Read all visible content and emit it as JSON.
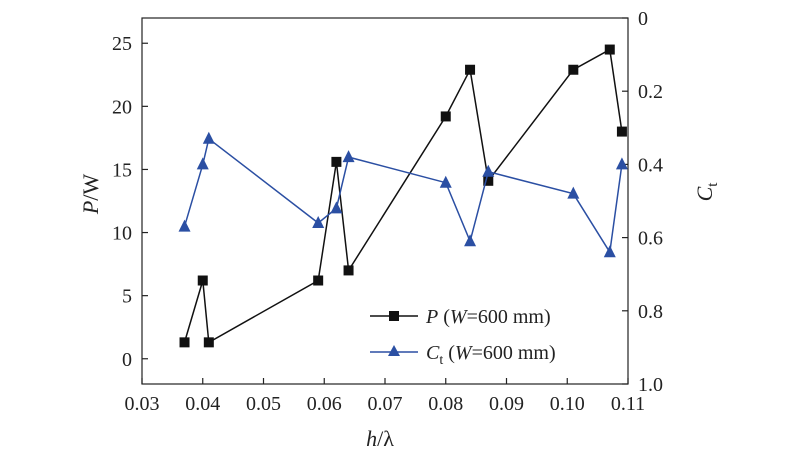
{
  "chart_data": {
    "type": "line",
    "xlabel_main": "h",
    "xlabel_unit": "/λ",
    "ylabel_left_main": "P",
    "ylabel_left_unit": "/W",
    "ylabel_right_main": "C",
    "ylabel_right_sub": "t",
    "xlim": [
      0.03,
      0.11
    ],
    "xticks": [
      "0.03",
      "0.04",
      "0.05",
      "0.06",
      "0.07",
      "0.08",
      "0.09",
      "0.10",
      "0.11"
    ],
    "ylim_left": [
      -2,
      27
    ],
    "yticks_left": [
      "0",
      "5",
      "10",
      "15",
      "20",
      "25"
    ],
    "ylim_right": [
      0,
      1.0
    ],
    "yticks_right": [
      "0",
      "0.2",
      "0.4",
      "0.6",
      "0.8",
      "1.0"
    ],
    "right_axis_inverted": true,
    "grid": false,
    "legend_position": "bottom-right",
    "series": [
      {
        "name_main": "P",
        "name_rest": " (W=600 mm)",
        "name_W": "W",
        "name_value": "=600 mm)",
        "axis": "left",
        "marker": "square",
        "color": "#111111",
        "x": [
          0.037,
          0.04,
          0.041,
          0.059,
          0.062,
          0.064,
          0.08,
          0.084,
          0.087,
          0.101,
          0.107,
          0.109
        ],
        "values": [
          1.3,
          6.2,
          1.3,
          6.2,
          15.6,
          7.0,
          19.2,
          22.9,
          14.1,
          22.9,
          24.5,
          18.0
        ]
      },
      {
        "name_main": "C",
        "name_sub": "t",
        "name_W": "W",
        "name_value": "=600 mm)",
        "axis": "right",
        "marker": "triangle",
        "color": "#2b4fa3",
        "x": [
          0.037,
          0.04,
          0.041,
          0.059,
          0.062,
          0.064,
          0.08,
          0.084,
          0.087,
          0.101,
          0.107,
          0.109
        ],
        "values": [
          0.57,
          0.4,
          0.33,
          0.56,
          0.52,
          0.38,
          0.45,
          0.61,
          0.42,
          0.48,
          0.64,
          0.4
        ]
      }
    ]
  }
}
